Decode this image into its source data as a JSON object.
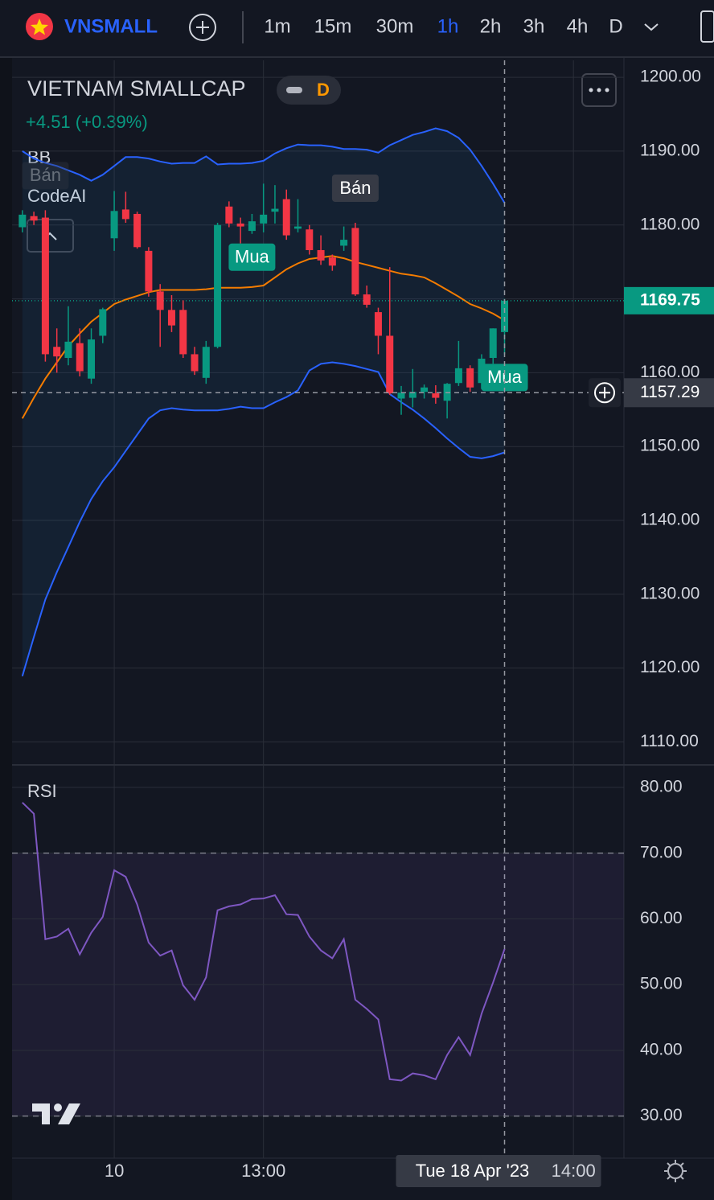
{
  "toolbar": {
    "symbol": "VNSMALL",
    "intervals": [
      "1m",
      "15m",
      "30m",
      "1h",
      "2h",
      "3h",
      "4h",
      "D"
    ],
    "active_interval": 3
  },
  "legend": {
    "title": "VIETNAM SMALLCAP",
    "interval_badge": "D",
    "change": "+4.51 (+0.39%)",
    "indicators": [
      "BB",
      "CodeAI"
    ]
  },
  "chart_data": [
    {
      "type": "candlestick",
      "up_color": "#089981",
      "down_color": "#f23645",
      "open": [
        1179.7,
        1181.2,
        1181,
        1163.5,
        1162,
        1164,
        1159.2,
        1165,
        1178.2,
        1182.1,
        1181.5,
        1176.5,
        1171,
        1168.5,
        1168.5,
        1162.5,
        1159.3,
        1163.5,
        1182.5,
        1180.2,
        1179.2,
        1180.2,
        1181.8,
        1183.5,
        1179.5,
        1179.4,
        1176.6,
        1175.6,
        1177.2,
        1179.6,
        1170.6,
        1168.2,
        1165,
        1156.5,
        1156.6,
        1157.4,
        1157.2,
        1156.2,
        1158.6,
        1160.6,
        1158.6,
        1162,
        1165.5
      ],
      "high": [
        1182,
        1181.8,
        1182,
        1166,
        1169,
        1166,
        1166,
        1168.8,
        1184.6,
        1184.5,
        1181.8,
        1177,
        1172,
        1170.5,
        1169.8,
        1163.5,
        1164.3,
        1180.3,
        1183.2,
        1181,
        1181.5,
        1185.6,
        1185.4,
        1184.8,
        1183.5,
        1180,
        1178.6,
        1176,
        1179.8,
        1180.3,
        1171.8,
        1168.8,
        1174.3,
        1158.2,
        1160.5,
        1158.4,
        1158.3,
        1158.6,
        1164.3,
        1161,
        1162.5,
        1166,
        1170
      ],
      "low": [
        1179,
        1180,
        1161.5,
        1160,
        1161,
        1159.5,
        1158.5,
        1164,
        1176.5,
        1180.3,
        1176.8,
        1170.3,
        1163.5,
        1165.5,
        1162,
        1159.7,
        1158.5,
        1163.3,
        1179.7,
        1177.5,
        1178.8,
        1179,
        1180.2,
        1178,
        1179,
        1176,
        1174.6,
        1173.8,
        1176.5,
        1170.4,
        1168.8,
        1162.5,
        1157,
        1154.3,
        1155.3,
        1156.5,
        1155.8,
        1153.8,
        1158.2,
        1157.4,
        1157.8,
        1161.2,
        1162.5
      ],
      "close": [
        1181.4,
        1180.6,
        1162.5,
        1162.2,
        1164.2,
        1160.2,
        1164.5,
        1168.6,
        1181.9,
        1180.8,
        1177,
        1171,
        1168.5,
        1166.4,
        1162.5,
        1160.2,
        1163.5,
        1180,
        1180.2,
        1179.8,
        1180.5,
        1181.4,
        1182.2,
        1178.6,
        1179.8,
        1176.6,
        1175.2,
        1174.5,
        1178,
        1170.6,
        1169.2,
        1165,
        1157.2,
        1157.3,
        1157.4,
        1158,
        1156.6,
        1158.5,
        1160.6,
        1158,
        1161.9,
        1166,
        1169.75
      ],
      "lines": [
        {
          "color": "#2962ff",
          "values": [
            1190.0,
            1189.0,
            1188.4,
            1188.0,
            1187.4,
            1186.8,
            1186.0,
            1186.8,
            1188.0,
            1189.2,
            1189.2,
            1189.0,
            1188.6,
            1188.3,
            1188.4,
            1188.4,
            1189.3,
            1188.2,
            1188.3,
            1188.3,
            1188.4,
            1188.7,
            1189.7,
            1190.4,
            1190.9,
            1190.8,
            1190.8,
            1190.6,
            1190.3,
            1190.3,
            1190.2,
            1189.8,
            1190.8,
            1191.5,
            1192.2,
            1192.6,
            1193.1,
            1192.7,
            1191.8,
            1190.2,
            1188.0,
            1185.6,
            1183.0
          ]
        },
        {
          "color": "#f57c00",
          "values": [
            1153.8,
            1156.6,
            1159.2,
            1161.4,
            1163.6,
            1165.3,
            1166.9,
            1168.1,
            1169.3,
            1169.9,
            1170.4,
            1170.9,
            1171.2,
            1171.2,
            1171.2,
            1171.2,
            1171.3,
            1171.5,
            1171.5,
            1171.5,
            1171.6,
            1171.8,
            1172.9,
            1174.0,
            1174.8,
            1175.4,
            1175.6,
            1175.8,
            1175.5,
            1175.0,
            1174.6,
            1174.2,
            1173.8,
            1173.4,
            1173.2,
            1172.9,
            1172.1,
            1171.2,
            1170.3,
            1169.3,
            1168.7,
            1168.0,
            1167.1
          ]
        },
        {
          "color": "#2962ff",
          "values": [
            1118.9,
            1124.2,
            1129.3,
            1133.0,
            1136.4,
            1139.8,
            1142.9,
            1145.3,
            1147.2,
            1149.4,
            1151.6,
            1153.8,
            1154.9,
            1155.2,
            1155.0,
            1154.9,
            1154.9,
            1154.9,
            1155.1,
            1155.4,
            1155.2,
            1155.2,
            1156.0,
            1156.7,
            1157.6,
            1160.3,
            1161.2,
            1161.4,
            1161.2,
            1160.9,
            1160.5,
            1160.1,
            1157.1,
            1156.0,
            1155.0,
            1153.8,
            1152.5,
            1151.1,
            1149.8,
            1148.6,
            1148.4,
            1148.7,
            1149.2
          ]
        }
      ],
      "annotations": [
        {
          "text": "Bán",
          "x": 2,
          "position": "above",
          "faded": true
        },
        {
          "text": "Mua",
          "x": 20,
          "position": "below",
          "faded": false
        },
        {
          "text": "Bán",
          "x": 29,
          "position": "above",
          "faded": false
        },
        {
          "text": "Mua",
          "x": 42,
          "position": "below",
          "faded": false
        }
      ],
      "xlim": [
        -0.9,
        52.4
      ],
      "xticks": [
        {
          "value": 8,
          "label": "10"
        },
        {
          "value": 21,
          "label": "13:00"
        },
        {
          "value": 48,
          "label": "14:00"
        }
      ],
      "ylim": [
        1107,
        1202.3
      ],
      "yticks": [
        {
          "value": 1110,
          "label": "1110.00"
        },
        {
          "value": 1120,
          "label": "1120.00"
        },
        {
          "value": 1130,
          "label": "1130.00"
        },
        {
          "value": 1140,
          "label": "1140.00"
        },
        {
          "value": 1150,
          "label": "1150.00"
        },
        {
          "value": 1160,
          "label": "1160.00"
        },
        {
          "value": 1170,
          "label": "1170.00"
        },
        {
          "value": 1180,
          "label": "1180.00"
        },
        {
          "value": 1190,
          "label": "1190.00"
        },
        {
          "value": 1200,
          "label": "1200.00"
        }
      ],
      "last_price": 1169.75,
      "crosshair": {
        "x": 42,
        "x_label": "Tue 18 Apr '23",
        "y": 1157.29
      },
      "grid": true
    },
    {
      "type": "line",
      "title": "RSI",
      "color": "#7e57c2",
      "values": [
        77.7,
        76,
        56.9,
        57.3,
        58.5,
        54.6,
        57.9,
        60.3,
        67.4,
        66.4,
        62.2,
        56.4,
        54.4,
        55.2,
        49.9,
        47.7,
        51.1,
        61.3,
        61.9,
        62.2,
        63,
        63.1,
        63.6,
        60.7,
        60.6,
        57.3,
        55.2,
        54,
        56.9,
        47.7,
        46.3,
        44.7,
        35.6,
        35.4,
        36.5,
        36.2,
        35.6,
        39.3,
        42,
        39.3,
        45.6,
        50.3,
        55.4
      ],
      "levels": [
        70,
        30
      ],
      "xlim": [
        -0.9,
        52.4
      ],
      "ylim": [
        23.6,
        83.3
      ],
      "yticks": [
        {
          "value": 30,
          "label": "30.00"
        },
        {
          "value": 40,
          "label": "40.00"
        },
        {
          "value": 50,
          "label": "50.00"
        },
        {
          "value": 60,
          "label": "60.00"
        },
        {
          "value": 70,
          "label": "70.00"
        },
        {
          "value": 80,
          "label": "80.00"
        }
      ],
      "grid": true
    }
  ]
}
